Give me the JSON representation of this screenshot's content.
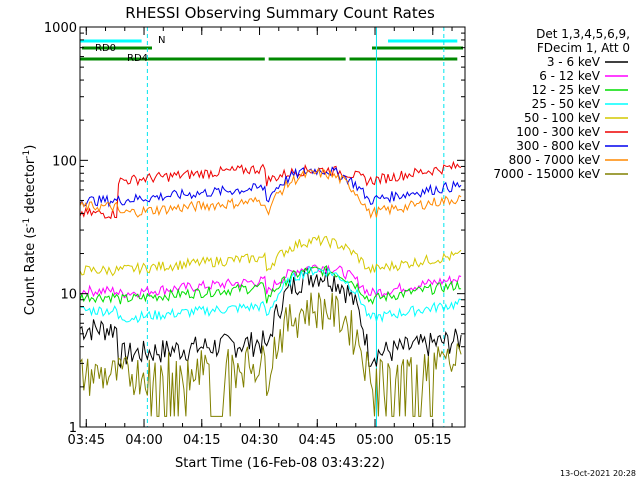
{
  "chart_data": {
    "type": "line",
    "title": "RHESSI Observing Summary Count Rates",
    "xlabel": "Start Time (16-Feb-08 03:43:22)",
    "ylabel_main": "Count Rate (s",
    "ylabel_sup1": "-1",
    "ylabel_mid": " detector",
    "ylabel_sup2": "-1",
    "ylabel_end": ")",
    "yscale": "log",
    "ylim": [
      1,
      1000
    ],
    "xlim_minutes": [
      0,
      100
    ],
    "xticks": [
      {
        "t": 1.63,
        "label": "03:45"
      },
      {
        "t": 16.63,
        "label": "04:00"
      },
      {
        "t": 31.63,
        "label": "04:15"
      },
      {
        "t": 46.63,
        "label": "04:30"
      },
      {
        "t": 61.63,
        "label": "04:45"
      },
      {
        "t": 76.63,
        "label": "05:00"
      },
      {
        "t": 91.63,
        "label": "05:15"
      }
    ],
    "yticks": [
      {
        "v": 1,
        "label": "1"
      },
      {
        "v": 10,
        "label": "10"
      },
      {
        "v": 100,
        "label": "100"
      },
      {
        "v": 1000,
        "label": "1000"
      }
    ],
    "legend_header": [
      "Det 1,3,4,5,6,9,",
      "FDecim 1, Att 0"
    ],
    "legend_position": "right",
    "series": [
      {
        "name": "3 - 6 keV",
        "color": "#000000",
        "night": 3.5,
        "day": 5.5,
        "peak": 14
      },
      {
        "name": "6 - 12 keV",
        "color": "#ff00ff",
        "night": 10,
        "day": 10.5,
        "peak": 16
      },
      {
        "name": "12 - 25 keV",
        "color": "#00dd00",
        "night": 9,
        "day": 9.5,
        "peak": 15
      },
      {
        "name": "25 - 50 keV",
        "color": "#00ffff",
        "night": 6.5,
        "day": 7.5,
        "peak": 15
      },
      {
        "name": "50 - 100 keV",
        "color": "#d4c800",
        "night": 15,
        "day": 15,
        "peak": 25
      },
      {
        "name": "100 - 300 keV",
        "color": "#ee0000",
        "night": 70,
        "day": 40,
        "peak": 85
      },
      {
        "name": "300 - 800 keV",
        "color": "#0000ee",
        "night": 50,
        "day": 50,
        "peak": 85
      },
      {
        "name": "800 - 7000 keV",
        "color": "#ff8800",
        "night": 40,
        "day": 45,
        "peak": 80
      },
      {
        "name": "7000 - 15000 keV",
        "color": "#808000",
        "night": 2.5,
        "day": 2.5,
        "peak": 8
      }
    ],
    "status_bars": [
      {
        "label": "RD0",
        "color": "#00ffff",
        "segments": [
          [
            0,
            16
          ],
          [
            80,
            98
          ]
        ]
      },
      {
        "label": "N",
        "color": "#00ffff",
        "segments": []
      },
      {
        "label": "RD4",
        "color": "#008800",
        "segments": [
          [
            0,
            48
          ],
          [
            49,
            69
          ],
          [
            70,
            98
          ]
        ]
      }
    ],
    "vertical_markers": [
      {
        "t": 0,
        "style": "solid"
      },
      {
        "t": 17.5,
        "style": "dashed"
      },
      {
        "t": 77,
        "style": "solid"
      },
      {
        "t": 94.5,
        "style": "dashed"
      }
    ],
    "footer_date": "13-Oct-2021 20:28"
  }
}
